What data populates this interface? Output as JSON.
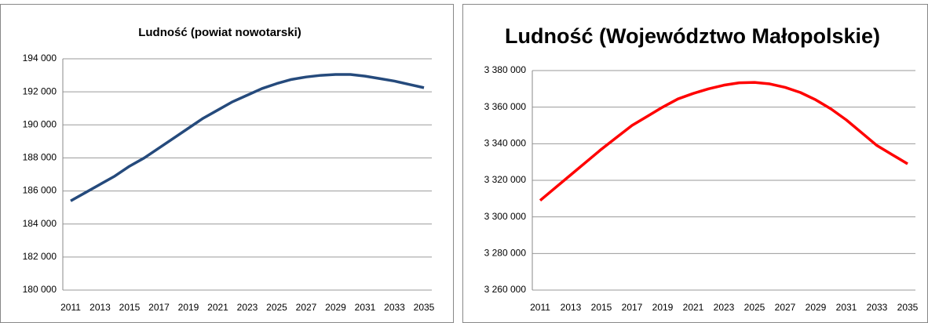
{
  "chart_data": [
    {
      "type": "line",
      "title": "Ludność (powiat nowotarski)",
      "categories": [
        2011,
        null,
        2013,
        null,
        2015,
        null,
        2017,
        null,
        2019,
        null,
        2021,
        null,
        2023,
        null,
        2025,
        null,
        2027,
        null,
        2029,
        null,
        2031,
        null,
        2033,
        null,
        2035
      ],
      "series": [
        {
          "name": "Ludność",
          "color": "#254a7c",
          "values": [
            185400,
            185900,
            186400,
            186900,
            187500,
            188000,
            188600,
            189200,
            189800,
            190400,
            190900,
            191400,
            191800,
            192200,
            192500,
            192750,
            192900,
            193000,
            193050,
            193050,
            192950,
            192800,
            192650,
            192450,
            192250
          ]
        }
      ],
      "ylim": [
        180000,
        194000
      ],
      "yticks": [
        {
          "value": 180000,
          "label": "180 000"
        },
        {
          "value": 182000,
          "label": "182 000"
        },
        {
          "value": 184000,
          "label": "184 000"
        },
        {
          "value": 186000,
          "label": "186 000"
        },
        {
          "value": 188000,
          "label": "188 000"
        },
        {
          "value": 190000,
          "label": "190 000"
        },
        {
          "value": 192000,
          "label": "192 000"
        },
        {
          "value": 194000,
          "label": "194 000"
        }
      ],
      "grid": true
    },
    {
      "type": "line",
      "title": "Ludność (Województwo Małopolskie)",
      "categories": [
        2011,
        null,
        2013,
        null,
        2015,
        null,
        2017,
        null,
        2019,
        null,
        2021,
        null,
        2023,
        null,
        2025,
        null,
        2027,
        null,
        2029,
        null,
        2031,
        null,
        2033,
        null,
        2035
      ],
      "series": [
        {
          "name": "Ludność",
          "color": "#ff0000",
          "values": [
            3309000,
            3316000,
            3323000,
            3330000,
            3337000,
            3343500,
            3350000,
            3355000,
            3360000,
            3364500,
            3367500,
            3370000,
            3372000,
            3373300,
            3373500,
            3372700,
            3370800,
            3368000,
            3364000,
            3359000,
            3353000,
            3346000,
            3339000,
            3334000,
            3329000
          ]
        }
      ],
      "ylim": [
        3260000,
        3380000
      ],
      "yticks": [
        {
          "value": 3260000,
          "label": "3 260 000"
        },
        {
          "value": 3280000,
          "label": "3 280 000"
        },
        {
          "value": 3300000,
          "label": "3 300 000"
        },
        {
          "value": 3320000,
          "label": "3 320 000"
        },
        {
          "value": 3340000,
          "label": "3 340 000"
        },
        {
          "value": 3360000,
          "label": "3 360 000"
        },
        {
          "value": 3380000,
          "label": "3 380 000"
        }
      ],
      "grid": true
    }
  ]
}
